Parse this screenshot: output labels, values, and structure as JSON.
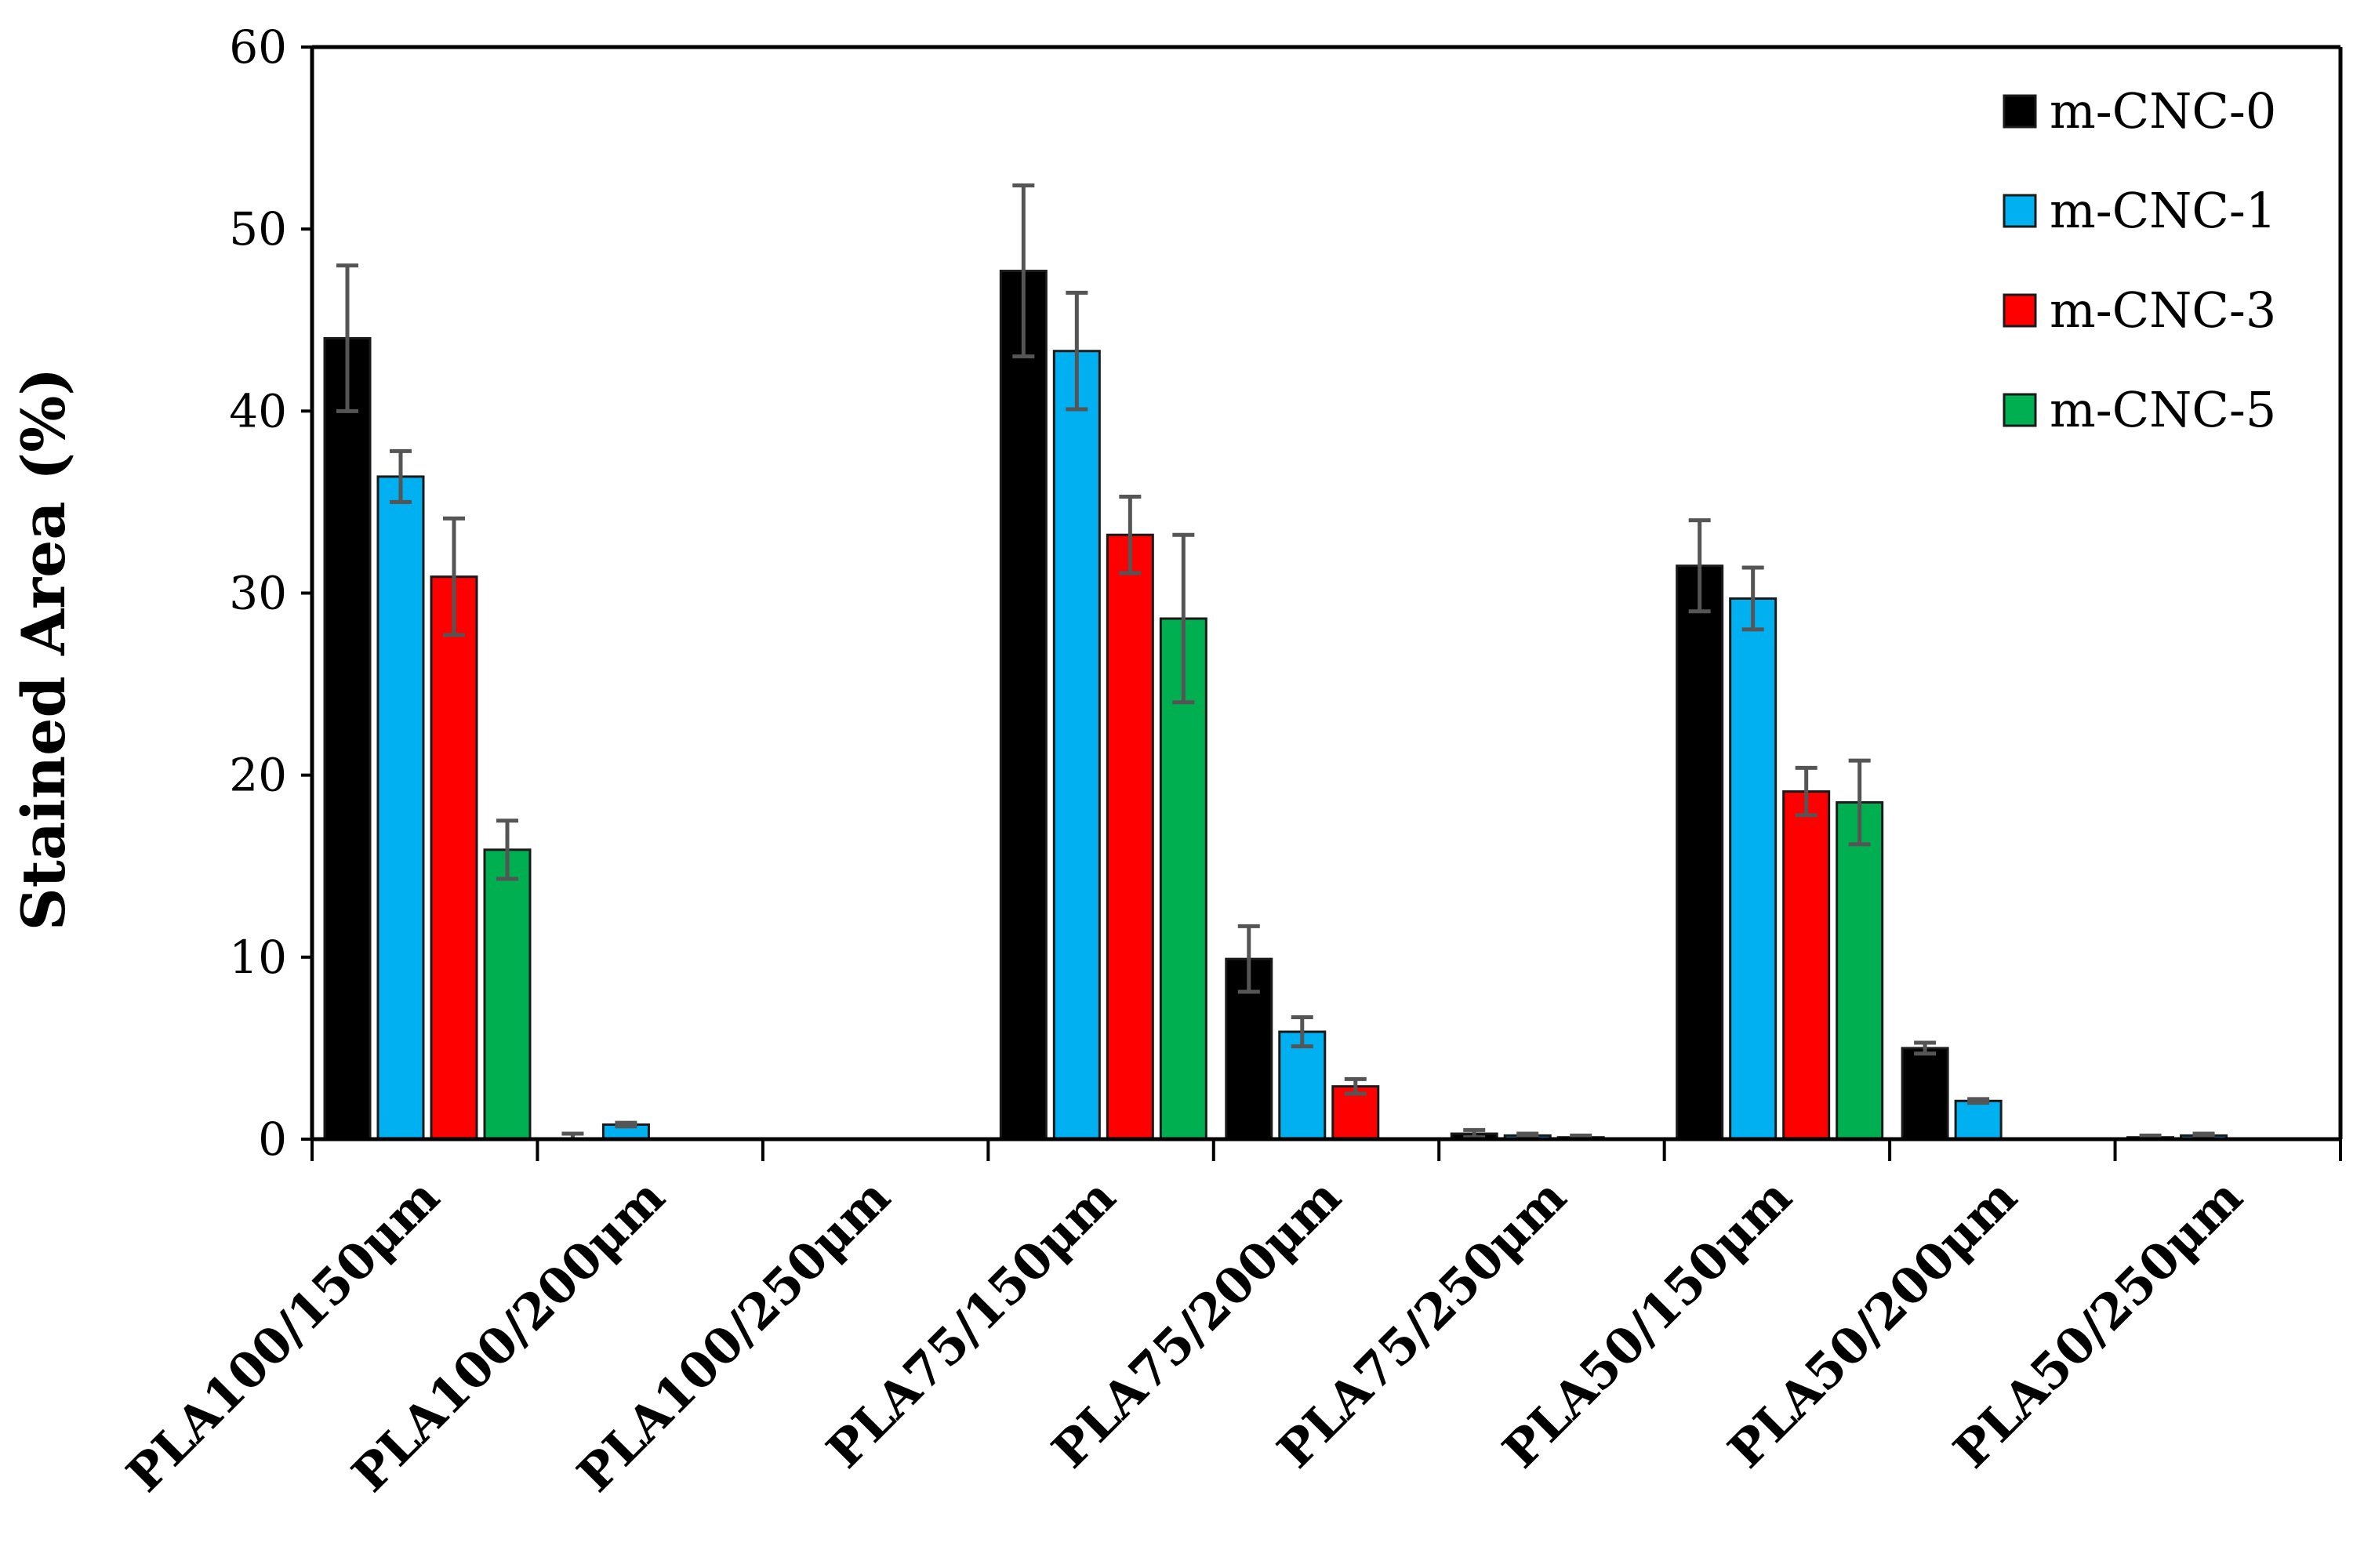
{
  "chart_data": {
    "type": "bar",
    "title": "",
    "xlabel": "",
    "ylabel": "Stained Area (%)",
    "ylim": [
      0,
      60
    ],
    "yticks": [
      0,
      10,
      20,
      30,
      40,
      50,
      60
    ],
    "grid": false,
    "legend_position": "top-right",
    "categories": [
      "PLA100/150μm",
      "PLA100/200μm",
      "PLA100/250μm",
      "PLA75/150μm",
      "PLA75/200μm",
      "PLA75/250μm",
      "PLA50/150μm",
      "PLA50/200μm",
      "PLA50/250μm"
    ],
    "series": [
      {
        "name": "m-CNC-0",
        "color": "#000000",
        "values": [
          44.0,
          0.0,
          0.0,
          47.7,
          9.9,
          0.3,
          31.5,
          5.0,
          0.1
        ],
        "errors": [
          4.0,
          0.3,
          0.0,
          4.7,
          1.8,
          0.2,
          2.5,
          0.3,
          0.1
        ]
      },
      {
        "name": "m-CNC-1",
        "color": "#00B0F0",
        "values": [
          36.4,
          0.8,
          0.0,
          43.3,
          5.9,
          0.2,
          29.7,
          2.1,
          0.2
        ],
        "errors": [
          1.4,
          0.1,
          0.0,
          3.2,
          0.8,
          0.1,
          1.7,
          0.1,
          0.1
        ]
      },
      {
        "name": "m-CNC-3",
        "color": "#FF0000",
        "values": [
          30.9,
          0.0,
          0.0,
          33.2,
          2.9,
          0.1,
          19.1,
          0.0,
          0.0
        ],
        "errors": [
          3.2,
          0.0,
          0.0,
          2.1,
          0.4,
          0.1,
          1.3,
          0.0,
          0.0
        ]
      },
      {
        "name": "m-CNC-5",
        "color": "#00B050",
        "values": [
          15.9,
          0.0,
          0.0,
          28.6,
          0.0,
          0.0,
          18.5,
          0.0,
          0.0
        ],
        "errors": [
          1.6,
          0.0,
          0.0,
          4.6,
          0.0,
          0.0,
          2.3,
          0.0,
          0.0
        ]
      }
    ]
  }
}
